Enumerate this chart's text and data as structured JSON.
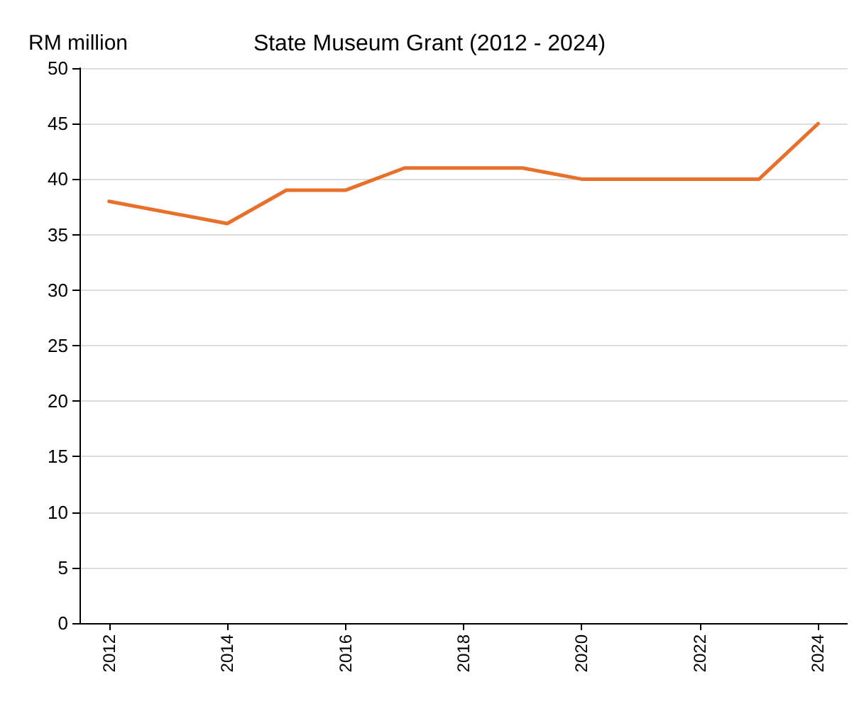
{
  "chart_data": {
    "type": "line",
    "title": "State Museum Grant (2012 - 2024)",
    "ylabel": "RM million",
    "x": [
      2012,
      2014,
      2015,
      2016,
      2017,
      2019,
      2020,
      2023,
      2024
    ],
    "series": [
      {
        "color": "#e8702a",
        "values": [
          38,
          36,
          39,
          39,
          41,
          41,
          40,
          40,
          45
        ]
      }
    ],
    "xlim": [
      2011.5,
      2024.5
    ],
    "xticks": [
      2012,
      2014,
      2016,
      2018,
      2020,
      2022,
      2024
    ],
    "ylim": [
      0,
      50
    ],
    "yticks": [
      0,
      5,
      10,
      15,
      20,
      25,
      30,
      35,
      40,
      45,
      50
    ],
    "grid": "y",
    "marker": "none",
    "line_style": "solid"
  }
}
